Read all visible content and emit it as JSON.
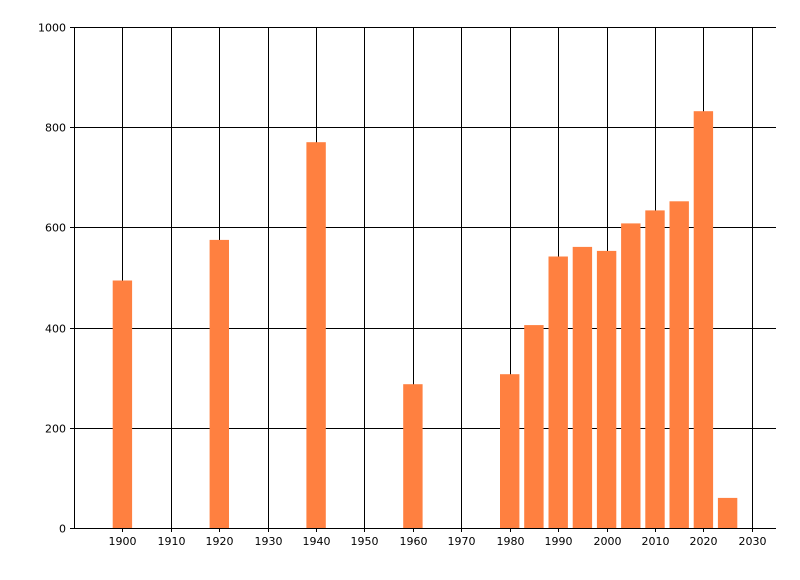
{
  "chart_data": {
    "type": "bar",
    "x": [
      1900,
      1920,
      1940,
      1960,
      1980,
      1985,
      1990,
      1995,
      2000,
      2005,
      2010,
      2015,
      2020,
      2025
    ],
    "values": [
      494,
      575,
      770,
      287,
      307,
      405,
      542,
      561,
      553,
      608,
      634,
      652,
      832,
      60
    ],
    "xlim": [
      1890,
      2035
    ],
    "ylim": [
      0,
      1000
    ],
    "x_ticks": [
      1900,
      1910,
      1920,
      1930,
      1940,
      1950,
      1960,
      1970,
      1980,
      1990,
      2000,
      2010,
      2020,
      2030
    ],
    "y_ticks": [
      0,
      200,
      400,
      600,
      800,
      1000
    ],
    "title": "",
    "xlabel": "",
    "ylabel": "",
    "grid": true,
    "bar_color": "#FF8040"
  }
}
